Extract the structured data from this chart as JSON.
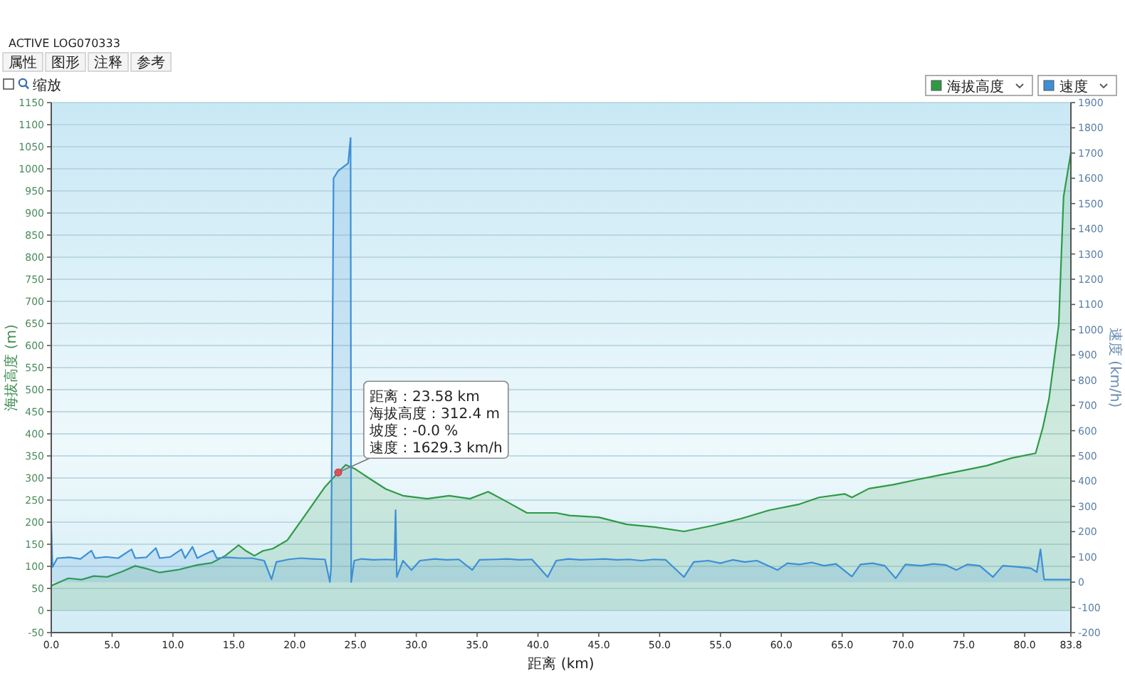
{
  "chart_data": {
    "type": "area",
    "title": "ACTIVE LOG070333",
    "xlabel": "距离 (km)",
    "ylabel": "海拔高度 (m)",
    "y2label": "速度 (km/h)",
    "xlim": [
      0,
      83.8
    ],
    "xticks": [
      {
        "value": 0,
        "label": "0.0"
      },
      {
        "value": 5,
        "label": "5.0"
      },
      {
        "value": 10,
        "label": "10.0"
      },
      {
        "value": 15,
        "label": "15.0"
      },
      {
        "value": 20,
        "label": "20.0"
      },
      {
        "value": 25,
        "label": "25.0"
      },
      {
        "value": 30,
        "label": "30.0"
      },
      {
        "value": 35,
        "label": "35.0"
      },
      {
        "value": 40,
        "label": "40.0"
      },
      {
        "value": 45,
        "label": "45.0"
      },
      {
        "value": 50,
        "label": "50.0"
      },
      {
        "value": 55,
        "label": "55.0"
      },
      {
        "value": 60,
        "label": "60.0"
      },
      {
        "value": 65,
        "label": "65.0"
      },
      {
        "value": 70,
        "label": "70.0"
      },
      {
        "value": 75,
        "label": "75.0"
      },
      {
        "value": 80,
        "label": "80.0"
      },
      {
        "value": 83.8,
        "label": "83.8"
      }
    ],
    "ylim": [
      -50,
      1150
    ],
    "yticks": [
      -50,
      0,
      50,
      100,
      150,
      200,
      250,
      300,
      350,
      400,
      450,
      500,
      550,
      600,
      650,
      700,
      750,
      800,
      850,
      900,
      950,
      1000,
      1050,
      1100,
      1150
    ],
    "y2lim": [
      -200,
      1900
    ],
    "y2ticks": [
      -200,
      -100,
      0,
      100,
      200,
      300,
      400,
      500,
      600,
      700,
      800,
      900,
      1000,
      1100,
      1200,
      1300,
      1400,
      1500,
      1600,
      1700,
      1800,
      1900
    ],
    "grid": "y",
    "legend": "top right",
    "series": [
      {
        "name": "海拔高度",
        "color": "#2f9a45",
        "x": [
          0,
          1.4,
          2.5,
          3.5,
          4.6,
          5.8,
          6.9,
          7.8,
          8.9,
          10.4,
          12,
          13.2,
          14.3,
          15.4,
          16,
          16.7,
          17.4,
          18.2,
          19.4,
          20.2,
          21,
          22.5,
          23.58,
          24.2,
          25,
          26.2,
          27.5,
          28.9,
          30.9,
          32.7,
          34.4,
          35.9,
          37.4,
          39.1,
          41.5,
          42.6,
          45,
          47.3,
          49.6,
          52,
          54.3,
          56.7,
          59,
          61.4,
          63.1,
          65.2,
          65.8,
          67.2,
          69.2,
          71.1,
          73.1,
          75.1,
          76.9,
          78.9,
          80.9,
          81.5,
          82,
          82.8,
          83.2,
          83.8
        ],
        "values": [
          56,
          73,
          70,
          78,
          76,
          88,
          101,
          95,
          86,
          92,
          103,
          108,
          124,
          148,
          135,
          124,
          135,
          140,
          159,
          190,
          221,
          280,
          312.4,
          330,
          320,
          298,
          275,
          260,
          253,
          260,
          253,
          269,
          247,
          221,
          221,
          215,
          211,
          195,
          189,
          179,
          192,
          208,
          227,
          240,
          256,
          264,
          256,
          276,
          285,
          296,
          307,
          318,
          328,
          345,
          356,
          415,
          479,
          647,
          937,
          1037
        ]
      },
      {
        "name": "速度",
        "color": "#3d8fd6",
        "axis": "y2",
        "x": [
          0,
          0.1,
          0.5,
          1.5,
          2.4,
          3.3,
          3.6,
          4.5,
          5.5,
          6.6,
          6.9,
          7.8,
          8.6,
          8.9,
          9.8,
          10.7,
          11,
          11.6,
          12,
          12.6,
          13.3,
          13.6,
          14.5,
          15.5,
          16.5,
          17.5,
          18.1,
          18.5,
          19.5,
          20.5,
          21.5,
          22.5,
          22.9,
          23,
          23.2,
          23.58,
          24.4,
          24.6,
          24.65,
          24.9,
          25.5,
          26.5,
          27.5,
          28.2,
          28.3,
          28.4,
          28.9,
          29.6,
          30.3,
          31.5,
          32.5,
          33.5,
          34.6,
          35.2,
          36.5,
          37.5,
          38.5,
          39.5,
          40.8,
          41.5,
          42.5,
          43.5,
          44.5,
          45.5,
          46.5,
          47.5,
          48.5,
          49.5,
          50.5,
          52,
          52.8,
          54,
          55,
          56,
          57,
          58,
          59.7,
          60.5,
          61.5,
          62.5,
          63.5,
          64.5,
          65.8,
          66.5,
          67.5,
          68.5,
          69.4,
          70.2,
          71.5,
          72.5,
          73.5,
          74.4,
          75.3,
          76.3,
          77.4,
          78.2,
          79.5,
          80.5,
          81,
          81.3,
          81.6,
          83.8
        ],
        "values": [
          229,
          60,
          95,
          98,
          92,
          125,
          95,
          100,
          95,
          130,
          95,
          98,
          135,
          95,
          100,
          130,
          95,
          140,
          95,
          110,
          125,
          95,
          98,
          95,
          95,
          85,
          11,
          80,
          90,
          95,
          92,
          90,
          0,
          60,
          1600,
          1629.3,
          1660,
          1760,
          0,
          85,
          92,
          88,
          90,
          88,
          285,
          20,
          85,
          48,
          85,
          92,
          88,
          90,
          48,
          88,
          90,
          92,
          88,
          90,
          20,
          85,
          92,
          88,
          90,
          92,
          88,
          90,
          85,
          90,
          88,
          20,
          80,
          85,
          75,
          88,
          80,
          85,
          48,
          75,
          70,
          78,
          65,
          72,
          22,
          70,
          75,
          65,
          15,
          70,
          65,
          72,
          68,
          48,
          70,
          65,
          20,
          65,
          60,
          55,
          40,
          130,
          10,
          10
        ]
      }
    ],
    "annotations": [
      {
        "text": "距离：23.58 km\n海拔高度：312.4 m\n坡度：-0.0 %\n速度：1629.3 km/h",
        "x": 23.58,
        "y": 312.4
      },
      "属性",
      "图形",
      "注释",
      "参考",
      "缩放"
    ]
  }
}
